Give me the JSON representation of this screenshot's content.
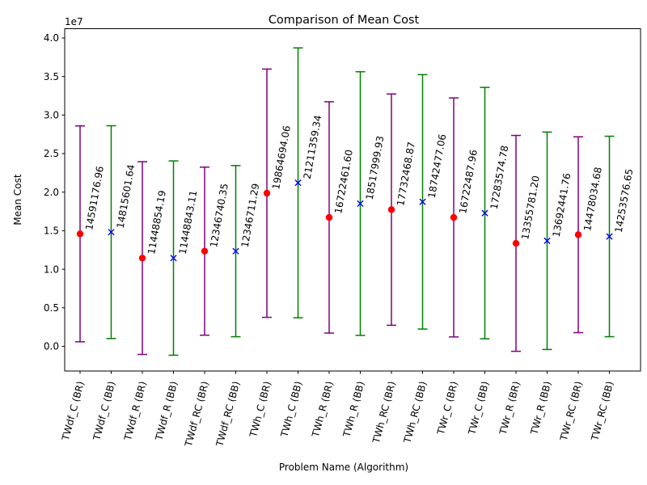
{
  "chart_data": {
    "type": "scatter",
    "title": "Comparison of Mean Cost",
    "xlabel": "Problem Name (Algorithm)",
    "ylabel": "Mean Cost",
    "offset_label": "1e7",
    "y_scale": 10000000,
    "ylim": [
      -3200000,
      41200000
    ],
    "yticks": [
      0,
      5000000,
      10000000,
      15000000,
      20000000,
      25000000,
      30000000,
      35000000,
      40000000
    ],
    "ytick_labels": [
      "0.0",
      "0.5",
      "1.0",
      "1.5",
      "2.0",
      "2.5",
      "3.0",
      "3.5",
      "4.0"
    ],
    "grid": false,
    "categories": [
      "TWdf_C (BR)",
      "TWdf_C (BB)",
      "TWdf_R (BR)",
      "TWdf_R (BB)",
      "TWdf_RC (BR)",
      "TWdf_RC (BB)",
      "TWh_C (BR)",
      "TWh_C (BB)",
      "TWh_R (BR)",
      "TWh_R (BB)",
      "TWh_RC (BR)",
      "TWh_RC (BB)",
      "TWr_C (BR)",
      "TWr_C (BB)",
      "TWr_R (BR)",
      "TWr_R (BB)",
      "TWr_RC (BR)",
      "TWr_RC (BB)"
    ],
    "series": [
      {
        "marker": "circle",
        "marker_color": "#ff0000",
        "errorbar_color": "#800080",
        "indices": [
          0,
          2,
          4,
          6,
          8,
          10,
          12,
          14,
          16
        ],
        "values": [
          14591176.96,
          11448854.19,
          12346740.35,
          19864694.06,
          16722461.6,
          17732468.87,
          16722487.96,
          13355781.2,
          14478034.68
        ],
        "labels": [
          "14591176.96",
          "11448854.19",
          "12346740.35",
          "19864694.06",
          "16722461.60",
          "17732468.87",
          "16722487.96",
          "13355781.20",
          "14478034.68"
        ],
        "errors": [
          14000000,
          12500000,
          10900000,
          16100000,
          15000000,
          15000000,
          15500000,
          14000000,
          12700000
        ]
      },
      {
        "marker": "x",
        "marker_color": "#0000ff",
        "errorbar_color": "#008000",
        "indices": [
          1,
          3,
          5,
          7,
          9,
          11,
          13,
          15,
          17
        ],
        "values": [
          14815601.64,
          11448843.11,
          12346711.29,
          21211359.34,
          18517999.93,
          18742477.06,
          17283574.78,
          13692441.76,
          14253576.65
        ],
        "labels": [
          "14815601.64",
          "11448843.11",
          "12346711.29",
          "21211359.34",
          "18517999.93",
          "18742477.06",
          "17283574.78",
          "13692441.76",
          "14253576.65"
        ],
        "errors": [
          13800000,
          12600000,
          11100000,
          17500000,
          17100000,
          16500000,
          16300000,
          14100000,
          13000000
        ]
      }
    ]
  }
}
